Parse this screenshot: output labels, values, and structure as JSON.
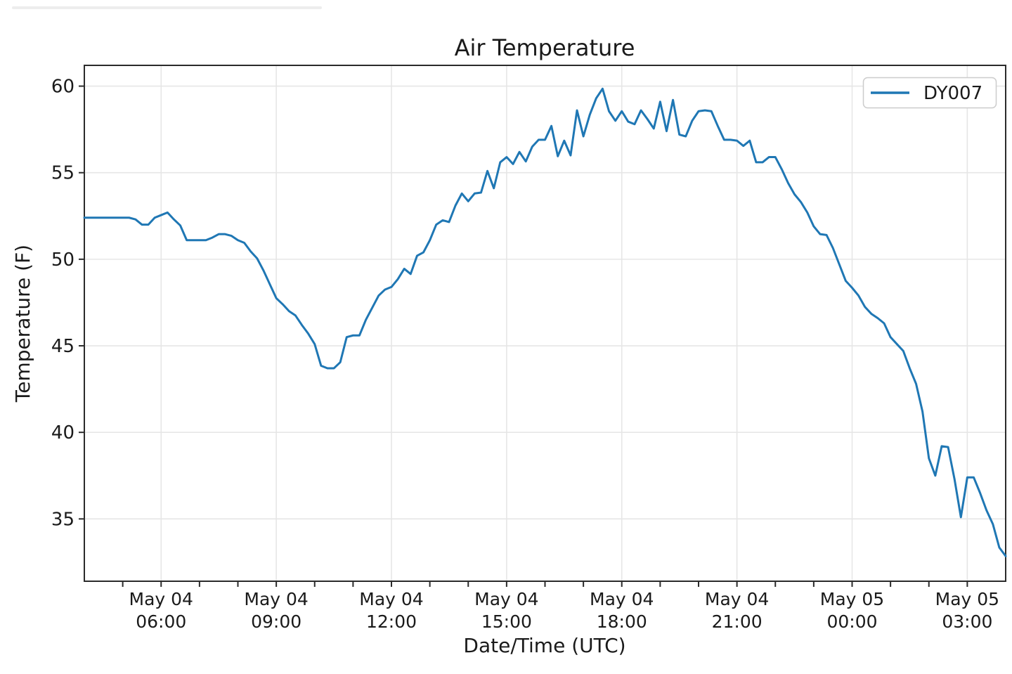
{
  "chart_data": {
    "type": "line",
    "title": "Air Temperature",
    "xlabel": "Date/Time (UTC)",
    "ylabel": "Temperature (F)",
    "grid": true,
    "legend": {
      "position": "upper right"
    },
    "yticks": [
      35,
      40,
      45,
      50,
      55,
      60
    ],
    "ylim": [
      31.4,
      61.2
    ],
    "x_axis": {
      "range_hours": [
        4,
        28
      ],
      "major_tick_hours": [
        6,
        9,
        12,
        15,
        18,
        21,
        24,
        27
      ],
      "minor_tick_every_hours": 1,
      "tick_labels": [
        [
          "May 04",
          "06:00"
        ],
        [
          "May 04",
          "09:00"
        ],
        [
          "May 04",
          "12:00"
        ],
        [
          "May 04",
          "15:00"
        ],
        [
          "May 04",
          "18:00"
        ],
        [
          "May 04",
          "21:00"
        ],
        [
          "May 05",
          "00:00"
        ],
        [
          "May 05",
          "03:00"
        ]
      ]
    },
    "series": [
      {
        "name": "DY007",
        "color": "#1f77b4",
        "x_start": "May 04 04:00",
        "x_step_minutes": 10,
        "values": [
          52.4,
          52.4,
          52.4,
          52.4,
          52.4,
          52.4,
          52.4,
          52.4,
          52.3,
          52.0,
          52.0,
          52.4,
          52.55,
          52.7,
          52.3,
          51.95,
          51.1,
          51.1,
          51.1,
          51.1,
          51.25,
          51.45,
          51.45,
          51.35,
          51.1,
          50.95,
          50.45,
          50.05,
          49.35,
          48.55,
          47.75,
          47.4,
          47.0,
          46.75,
          46.2,
          45.7,
          45.1,
          43.85,
          43.7,
          43.7,
          44.05,
          45.5,
          45.6,
          45.6,
          46.5,
          47.2,
          47.9,
          48.25,
          48.4,
          48.85,
          49.45,
          49.15,
          50.2,
          50.4,
          51.1,
          52.0,
          52.25,
          52.15,
          53.1,
          53.8,
          53.35,
          53.8,
          53.85,
          55.1,
          54.1,
          55.6,
          55.9,
          55.5,
          56.2,
          55.65,
          56.5,
          56.9,
          56.9,
          57.7,
          55.95,
          56.85,
          56.0,
          58.6,
          57.1,
          58.35,
          59.3,
          59.85,
          58.55,
          58.0,
          58.55,
          57.95,
          57.8,
          58.6,
          58.1,
          57.55,
          59.1,
          57.4,
          59.2,
          57.2,
          57.1,
          58.0,
          58.55,
          58.6,
          58.55,
          57.7,
          56.9,
          56.9,
          56.85,
          56.55,
          56.85,
          55.6,
          55.6,
          55.9,
          55.9,
          55.2,
          54.4,
          53.75,
          53.3,
          52.7,
          51.9,
          51.45,
          51.4,
          50.65,
          49.7,
          48.75,
          48.35,
          47.9,
          47.25,
          46.85,
          46.6,
          46.3,
          45.5,
          45.1,
          44.7,
          43.7,
          42.8,
          41.2,
          38.5,
          37.5,
          39.2,
          39.15,
          37.3,
          35.1,
          37.4,
          37.4,
          36.5,
          35.5,
          34.7,
          33.35,
          32.85
        ]
      }
    ]
  }
}
